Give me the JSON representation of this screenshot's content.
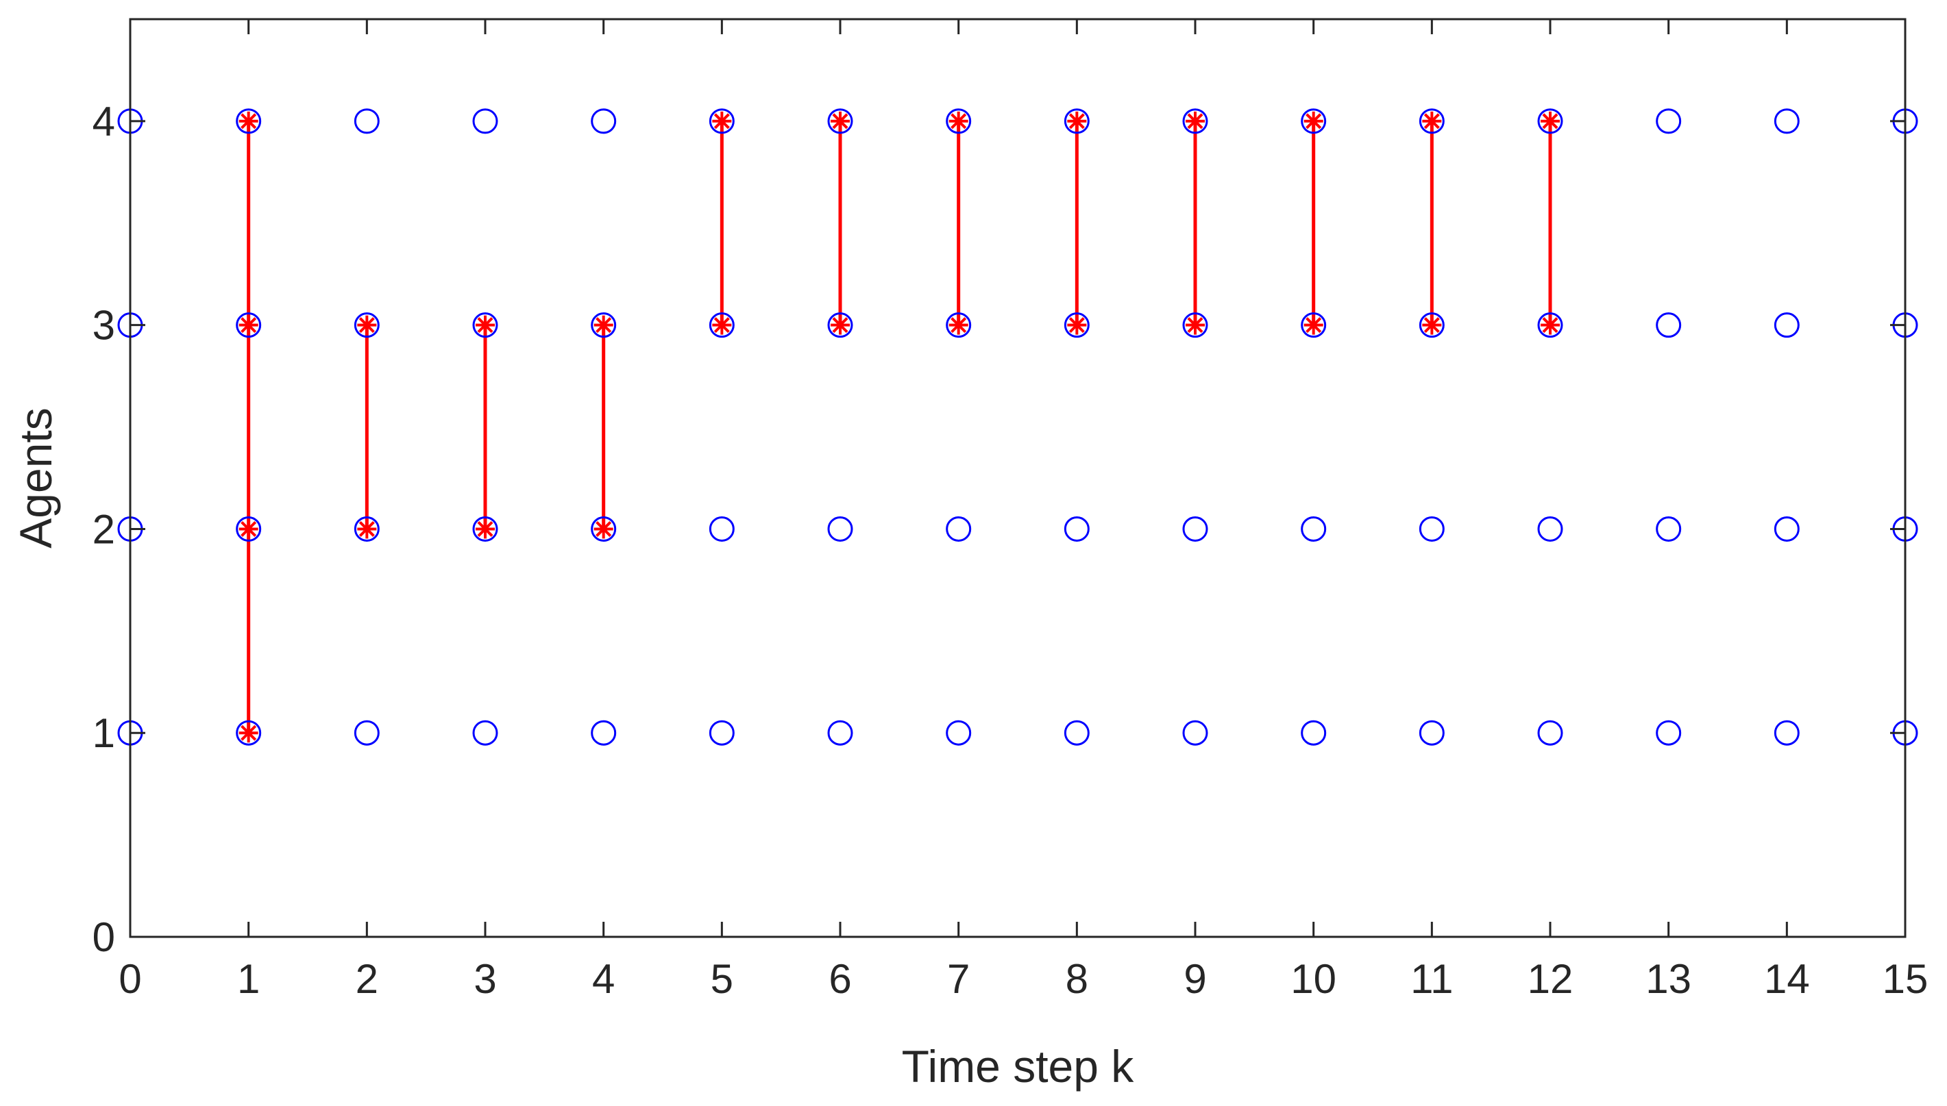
{
  "chart_data": {
    "type": "scatter",
    "title": "",
    "xlabel": "Time step k",
    "ylabel": "Agents",
    "xlim": [
      0,
      15
    ],
    "ylim": [
      0,
      4.5
    ],
    "xticks": [
      0,
      1,
      2,
      3,
      4,
      5,
      6,
      7,
      8,
      9,
      10,
      11,
      12,
      13,
      14,
      15
    ],
    "yticks": [
      0,
      1,
      2,
      3,
      4
    ],
    "grid": false,
    "colors": {
      "circle": "#0000ff",
      "active": "#ff0000",
      "axis": "#262626"
    },
    "agents": [
      1,
      2,
      3,
      4
    ],
    "steps": [
      0,
      1,
      2,
      3,
      4,
      5,
      6,
      7,
      8,
      9,
      10,
      11,
      12,
      13,
      14,
      15
    ],
    "active_links": [
      {
        "k": 1,
        "agents": [
          1,
          2,
          3,
          4
        ]
      },
      {
        "k": 2,
        "agents": [
          2,
          3
        ]
      },
      {
        "k": 3,
        "agents": [
          2,
          3
        ]
      },
      {
        "k": 4,
        "agents": [
          2,
          3
        ]
      },
      {
        "k": 5,
        "agents": [
          3,
          4
        ]
      },
      {
        "k": 6,
        "agents": [
          3,
          4
        ]
      },
      {
        "k": 7,
        "agents": [
          3,
          4
        ]
      },
      {
        "k": 8,
        "agents": [
          3,
          4
        ]
      },
      {
        "k": 9,
        "agents": [
          3,
          4
        ]
      },
      {
        "k": 10,
        "agents": [
          3,
          4
        ]
      },
      {
        "k": 11,
        "agents": [
          3,
          4
        ]
      },
      {
        "k": 12,
        "agents": [
          3,
          4
        ]
      }
    ]
  }
}
